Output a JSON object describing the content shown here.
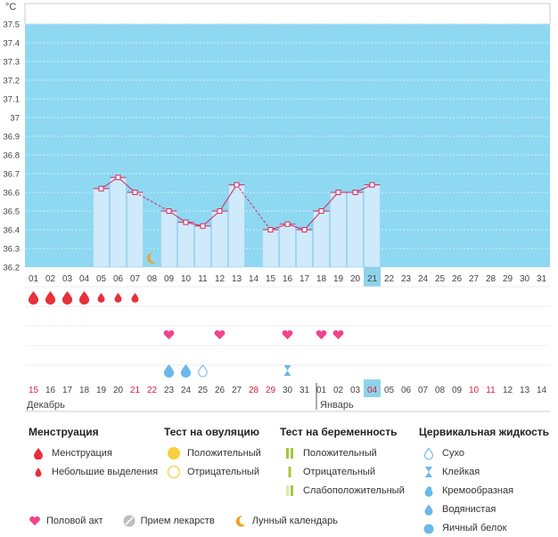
{
  "chart_data": {
    "type": "line",
    "unit_label": "°C",
    "ylim": [
      36.2,
      37.5
    ],
    "y_ticks": [
      "36.2",
      "36.3",
      "36.4",
      "36.5",
      "36.6",
      "36.7",
      "36.8",
      "36.9",
      "37",
      "37.1",
      "37.2",
      "37.3",
      "37.4",
      "37.5"
    ],
    "x_days": [
      "01",
      "02",
      "03",
      "04",
      "05",
      "06",
      "07",
      "08",
      "09",
      "10",
      "11",
      "12",
      "13",
      "14",
      "15",
      "16",
      "17",
      "18",
      "19",
      "20",
      "21",
      "22",
      "23",
      "24",
      "25",
      "26",
      "27",
      "28",
      "29",
      "30",
      "31"
    ],
    "highlight_day": "21",
    "temperatures": [
      {
        "day": "05",
        "value": 36.62
      },
      {
        "day": "06",
        "value": 36.68
      },
      {
        "day": "07",
        "value": 36.6
      },
      {
        "day": "09",
        "value": 36.5
      },
      {
        "day": "10",
        "value": 36.44
      },
      {
        "day": "11",
        "value": 36.42
      },
      {
        "day": "12",
        "value": 36.5
      },
      {
        "day": "13",
        "value": 36.64
      },
      {
        "day": "15",
        "value": 36.4
      },
      {
        "day": "16",
        "value": 36.43
      },
      {
        "day": "17",
        "value": 36.4
      },
      {
        "day": "18",
        "value": 36.5
      },
      {
        "day": "19",
        "value": 36.6
      },
      {
        "day": "20",
        "value": 36.6
      },
      {
        "day": "21",
        "value": 36.64
      }
    ],
    "menstruation_days": [
      "01",
      "02",
      "03",
      "04"
    ],
    "light_bleeding_days": [
      "05",
      "06",
      "07"
    ],
    "moon_day": "08",
    "intercourse_days": [
      "09",
      "12",
      "16",
      "18",
      "19"
    ],
    "mucus": [
      {
        "day": "09",
        "kind": "watery"
      },
      {
        "day": "10",
        "kind": "watery"
      },
      {
        "day": "11",
        "kind": "dry"
      },
      {
        "day": "16",
        "kind": "sticky"
      }
    ],
    "dates": [
      "15",
      "16",
      "17",
      "18",
      "19",
      "20",
      "21",
      "22",
      "23",
      "24",
      "25",
      "26",
      "27",
      "28",
      "29",
      "30",
      "31",
      "01",
      "02",
      "03",
      "04",
      "05",
      "06",
      "07",
      "08",
      "09",
      "10",
      "11",
      "12",
      "13",
      "14"
    ],
    "red_date_indices": [
      0,
      6,
      7,
      13,
      14,
      20,
      26,
      27
    ],
    "highlight_date_index": 20,
    "month_labels": {
      "first": "Декабрь",
      "second": "Январь"
    }
  },
  "colors": {
    "sky": "#8ed8f2",
    "bar": "#cfeafb",
    "bar_border": "#9ed1ee",
    "line": "#d6275e",
    "blood": "#e8303a",
    "heart": "#f0438a",
    "mucus": "#6bb8ea",
    "red_date": "#d81e3a",
    "highlight": "#8ed3ea"
  },
  "legend": {
    "menstruation": {
      "title": "Менструация",
      "items": [
        "Менструация",
        "Небольшие выделения"
      ]
    },
    "ovulation": {
      "title": "Тест на овуляцию",
      "items": [
        "Положительный",
        "Отрицательный"
      ]
    },
    "pregnancy": {
      "title": "Тест на беременность",
      "items": [
        "Положительный",
        "Отрицательный",
        "Слабоположительный"
      ]
    },
    "cervical": {
      "title": "Цервикальная жидкость",
      "items": [
        "Сухо",
        "Клейкая",
        "Кремообразная",
        "Водянистая",
        "Яичный белок"
      ]
    },
    "bottom": [
      "Половой акт",
      "Прием лекарств",
      "Лунный календарь"
    ]
  }
}
